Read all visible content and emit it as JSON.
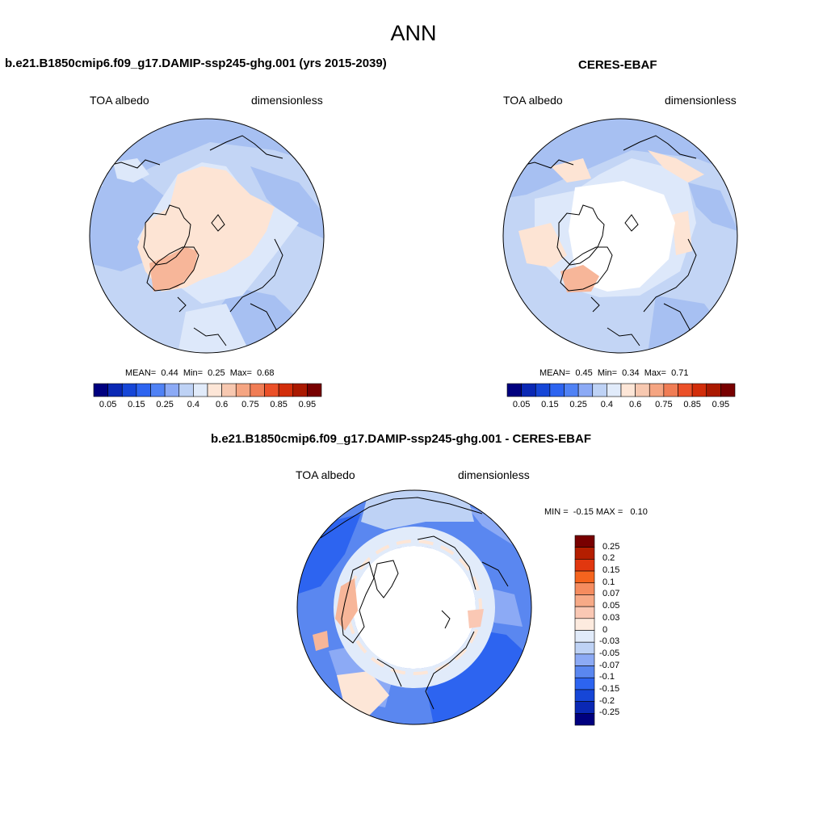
{
  "figure": {
    "season": "ANN",
    "panels": [
      {
        "title": "b.e21.B1850cmip6.f09_g17.DAMIP-ssp245-ghg.001 (yrs 2015-2039)",
        "variable": "TOA albedo",
        "units": "dimensionless",
        "stats": {
          "mean_label": "MEAN=",
          "mean": "0.44",
          "min_label": "Min=",
          "min": "0.25",
          "max_label": "Max=",
          "max": "0.68"
        }
      },
      {
        "title": "CERES-EBAF",
        "variable": "TOA albedo",
        "units": "dimensionless",
        "stats": {
          "mean_label": "MEAN=",
          "mean": "0.45",
          "min_label": "Min=",
          "min": "0.34",
          "max_label": "Max=",
          "max": "0.71"
        }
      },
      {
        "title": "b.e21.B1850cmip6.f09_g17.DAMIP-ssp245-ghg.001 - CERES-EBAF",
        "variable": "TOA albedo",
        "units": "dimensionless",
        "stats": {
          "min_label": "MIN =",
          "min": "-0.15",
          "max_label": "MAX =",
          "max": "0.10"
        }
      }
    ],
    "colorbar_abs": {
      "colors": [
        "#00007f",
        "#0a28b4",
        "#1646d7",
        "#2d64f0",
        "#5082f5",
        "#8caaf5",
        "#bed2f5",
        "#e1ebfa",
        "#fde6d7",
        "#f7c8b0",
        "#f5a582",
        "#f07d55",
        "#eb5028",
        "#d22d0a",
        "#aa1900",
        "#780000"
      ],
      "tick_labels": [
        "0.05",
        "0.15",
        "0.25",
        "0.4",
        "0.6",
        "0.75",
        "0.85",
        "0.95"
      ]
    },
    "colorbar_diff": {
      "colors": [
        "#780000",
        "#b41e00",
        "#e1370f",
        "#f5641e",
        "#f58c5f",
        "#f7aa87",
        "#fac8b4",
        "#fdebdf",
        "#e1ebfa",
        "#bed2f5",
        "#8caaf5",
        "#5a87f0",
        "#2d64f0",
        "#1646d7",
        "#0a28b4",
        "#00007f"
      ],
      "tick_labels": [
        "0.25",
        "0.2",
        "0.15",
        "0.1",
        "0.07",
        "0.05",
        "0.03",
        "0",
        "-0.03",
        "-0.05",
        "-0.07",
        "-0.1",
        "-0.15",
        "-0.2",
        "-0.25"
      ]
    }
  }
}
